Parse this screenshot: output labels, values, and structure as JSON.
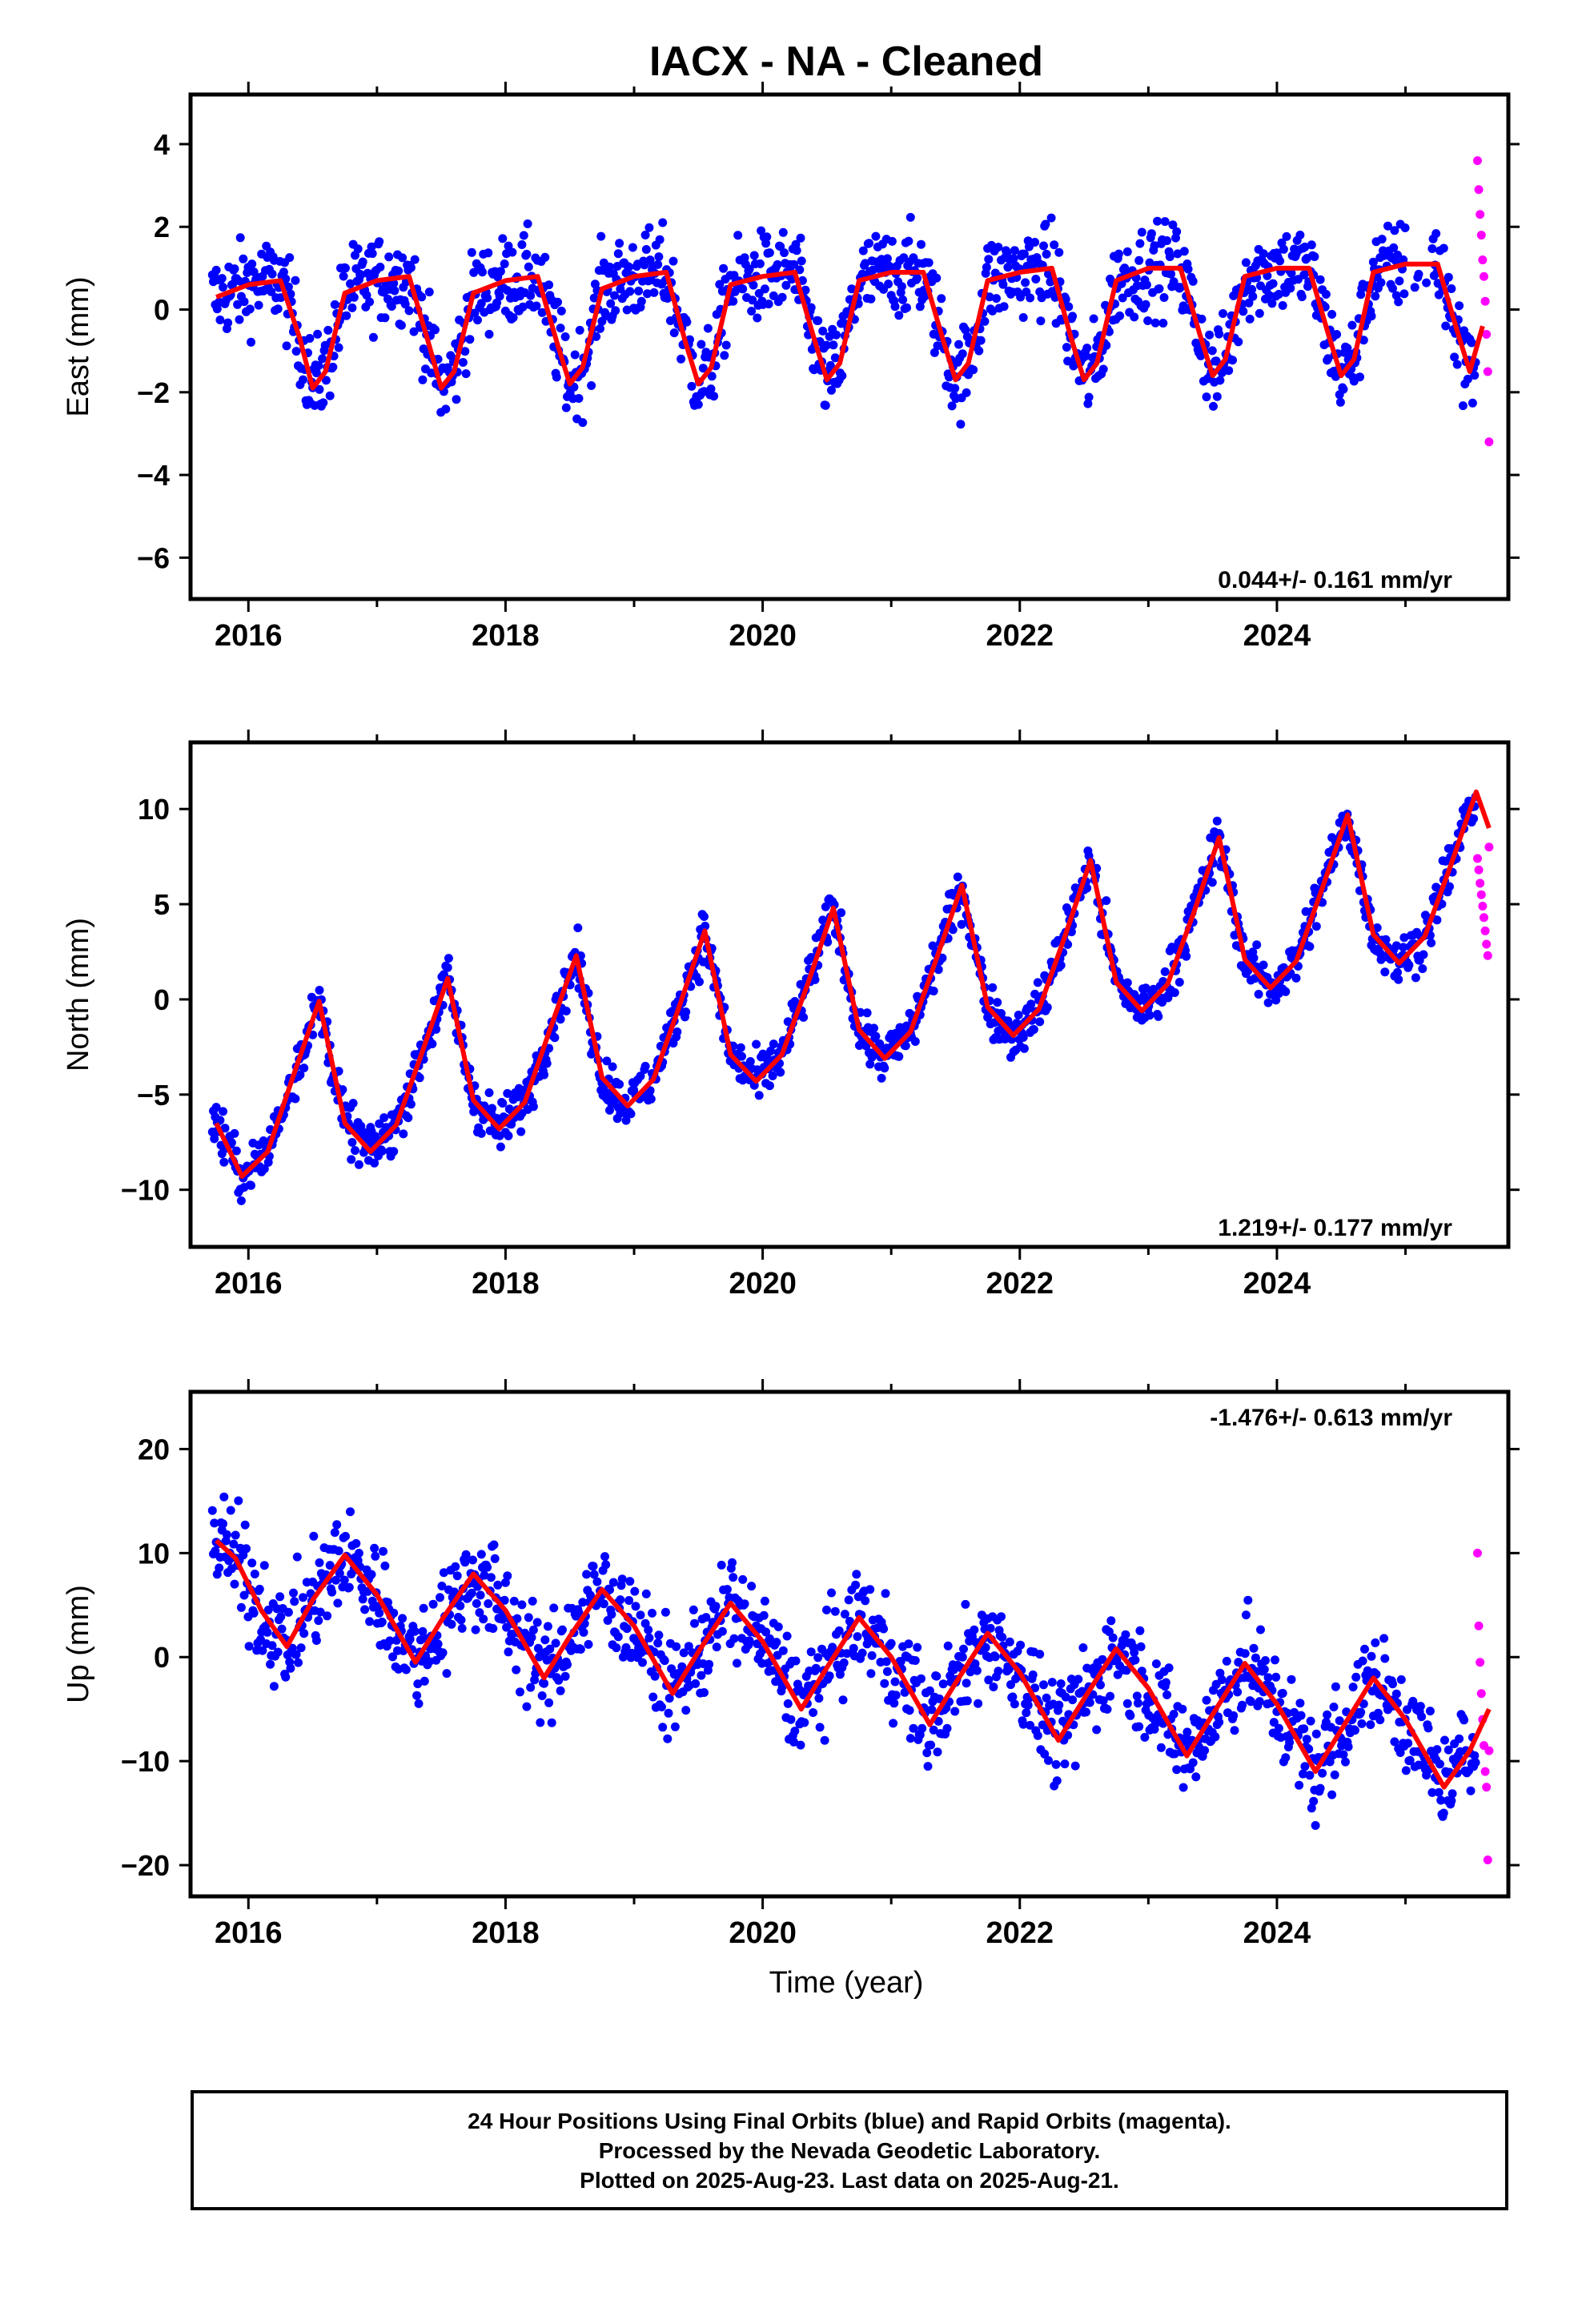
{
  "title": "IACX  - NA - Cleaned",
  "xlabel": "Time (year)",
  "colors": {
    "final": "#0000ff",
    "rapid": "#ff00ff",
    "model": "#ff0000",
    "frame": "#000000"
  },
  "footer": {
    "line1": "24 Hour Positions Using Final Orbits (blue) and Rapid Orbits (magenta).",
    "line2": "Processed by the Nevada Geodetic Laboratory.",
    "line3": "Plotted on 2025-Aug-23. Last data on 2025-Aug-21."
  },
  "chart_data": [
    {
      "type": "scatter",
      "component": "East",
      "ylabel": "East (mm)",
      "xlim": [
        2015.55,
        2025.8
      ],
      "ylim": [
        -7.0,
        5.2
      ],
      "xticks": [
        2016,
        2018,
        2020,
        2022,
        2024
      ],
      "yticks": [
        -6,
        -4,
        -2,
        0,
        2,
        4
      ],
      "rate_text": "0.044+/- 0.161 mm/yr",
      "rate_position": "bottom-right",
      "model": {
        "x": [
          2015.75,
          2016.0,
          2016.25,
          2016.4,
          2016.5,
          2016.6,
          2016.75,
          2017.0,
          2017.25,
          2017.4,
          2017.5,
          2017.6,
          2017.75,
          2018.0,
          2018.25,
          2018.4,
          2018.5,
          2018.6,
          2018.75,
          2019.0,
          2019.25,
          2019.4,
          2019.5,
          2019.6,
          2019.75,
          2020.0,
          2020.25,
          2020.4,
          2020.5,
          2020.6,
          2020.75,
          2021.0,
          2021.25,
          2021.4,
          2021.5,
          2021.6,
          2021.75,
          2022.0,
          2022.25,
          2022.4,
          2022.5,
          2022.6,
          2022.75,
          2023.0,
          2023.25,
          2023.4,
          2023.5,
          2023.6,
          2023.75,
          2024.0,
          2024.25,
          2024.4,
          2024.5,
          2024.6,
          2024.75,
          2025.0,
          2025.25,
          2025.4,
          2025.5,
          2025.6
        ],
        "y": [
          0.3,
          0.6,
          0.7,
          -0.7,
          -1.9,
          -1.5,
          0.4,
          0.7,
          0.8,
          -0.8,
          -1.9,
          -1.5,
          0.4,
          0.7,
          0.8,
          -0.8,
          -1.8,
          -1.4,
          0.5,
          0.8,
          0.9,
          -0.8,
          -1.8,
          -1.4,
          0.6,
          0.8,
          0.9,
          -0.7,
          -1.7,
          -1.3,
          0.7,
          0.9,
          0.9,
          -0.7,
          -1.7,
          -1.3,
          0.7,
          0.9,
          1.0,
          -0.7,
          -1.7,
          -1.3,
          0.7,
          1.0,
          1.0,
          -0.6,
          -1.6,
          -1.2,
          0.8,
          1.0,
          1.0,
          -0.6,
          -1.6,
          -1.2,
          0.9,
          1.1,
          1.1,
          -0.5,
          -1.5,
          -0.4
        ]
      },
      "rapid": {
        "x": [
          2025.56,
          2025.57,
          2025.58,
          2025.59,
          2025.6,
          2025.61,
          2025.62,
          2025.63,
          2025.64,
          2025.65
        ],
        "y": [
          3.6,
          2.9,
          2.3,
          1.8,
          1.2,
          0.8,
          0.2,
          -0.6,
          -1.5,
          -3.2
        ]
      }
    },
    {
      "type": "scatter",
      "component": "North",
      "ylabel": "North (mm)",
      "xlim": [
        2015.55,
        2025.8
      ],
      "ylim": [
        -13.0,
        13.5
      ],
      "xticks": [
        2016,
        2018,
        2020,
        2022,
        2024
      ],
      "yticks": [
        -10,
        -5,
        0,
        5,
        10
      ],
      "rate_text": "1.219+/- 0.177 mm/yr",
      "rate_position": "bottom-right",
      "model": {
        "x": [
          2015.75,
          2015.95,
          2016.15,
          2016.35,
          2016.55,
          2016.75,
          2016.95,
          2017.15,
          2017.35,
          2017.55,
          2017.75,
          2017.95,
          2018.15,
          2018.35,
          2018.55,
          2018.75,
          2018.95,
          2019.15,
          2019.35,
          2019.55,
          2019.75,
          2019.95,
          2020.15,
          2020.35,
          2020.55,
          2020.75,
          2020.95,
          2021.15,
          2021.35,
          2021.55,
          2021.75,
          2021.95,
          2022.15,
          2022.35,
          2022.55,
          2022.75,
          2022.95,
          2023.15,
          2023.35,
          2023.55,
          2023.75,
          2023.95,
          2024.15,
          2024.35,
          2024.55,
          2024.75,
          2024.95,
          2025.15,
          2025.35,
          2025.55,
          2025.65
        ],
        "y": [
          -6.5,
          -9.3,
          -8.0,
          -4.0,
          -0.1,
          -6.5,
          -8.0,
          -6.6,
          -2.8,
          1.1,
          -5.3,
          -6.8,
          -5.4,
          -1.5,
          2.3,
          -4.1,
          -5.6,
          -4.2,
          -0.4,
          3.6,
          -2.9,
          -4.3,
          -2.9,
          0.8,
          4.8,
          -1.6,
          -3.1,
          -1.7,
          2.1,
          6.0,
          -0.4,
          -1.9,
          -0.5,
          3.3,
          7.3,
          0.9,
          -0.6,
          0.8,
          4.5,
          8.5,
          2.1,
          0.6,
          2.0,
          5.8,
          9.7,
          3.4,
          1.9,
          3.3,
          7.0,
          10.9,
          9.0
        ]
      },
      "rapid": {
        "x": [
          2025.56,
          2025.57,
          2025.58,
          2025.59,
          2025.6,
          2025.61,
          2025.62,
          2025.63,
          2025.64,
          2025.65
        ],
        "y": [
          7.4,
          6.8,
          6.1,
          5.5,
          4.9,
          4.3,
          3.6,
          2.9,
          2.3,
          8.0
        ]
      }
    },
    {
      "type": "scatter",
      "component": "Up",
      "ylabel": "Up (mm)",
      "xlim": [
        2015.55,
        2025.8
      ],
      "ylim": [
        -23.0,
        25.5
      ],
      "xticks": [
        2016,
        2018,
        2020,
        2022,
        2024
      ],
      "yticks": [
        -20,
        -10,
        0,
        10,
        20
      ],
      "rate_text": "-1.476+/- 0.613 mm/yr",
      "rate_position": "top-right",
      "model": {
        "x": [
          2015.75,
          2015.9,
          2016.1,
          2016.3,
          2016.5,
          2016.75,
          2017.0,
          2017.3,
          2017.5,
          2017.75,
          2018.0,
          2018.3,
          2018.5,
          2018.75,
          2019.0,
          2019.3,
          2019.5,
          2019.75,
          2020.0,
          2020.3,
          2020.5,
          2020.75,
          2021.0,
          2021.3,
          2021.5,
          2021.75,
          2022.0,
          2022.3,
          2022.5,
          2022.75,
          2023.0,
          2023.3,
          2023.5,
          2023.75,
          2024.0,
          2024.3,
          2024.5,
          2024.75,
          2025.0,
          2025.3,
          2025.5,
          2025.65
        ],
        "y": [
          11.2,
          9.5,
          4.5,
          1.0,
          5.5,
          9.8,
          6.0,
          -0.5,
          3.5,
          8.0,
          4.5,
          -2.0,
          2.0,
          6.5,
          3.0,
          -3.5,
          0.5,
          5.2,
          1.5,
          -5.0,
          -1.0,
          3.8,
          0.0,
          -6.5,
          -2.5,
          2.3,
          -1.5,
          -8.0,
          -4.0,
          0.8,
          -3.0,
          -9.5,
          -5.5,
          -0.6,
          -4.5,
          -11.0,
          -7.0,
          -2.0,
          -6.0,
          -12.5,
          -9.0,
          -5.0
        ]
      },
      "rapid": {
        "x": [
          2025.56,
          2025.57,
          2025.58,
          2025.59,
          2025.6,
          2025.61,
          2025.62,
          2025.63,
          2025.64,
          2025.65
        ],
        "y": [
          10.0,
          3.0,
          -0.5,
          -3.5,
          -6.0,
          -8.5,
          -11.0,
          -12.5,
          -19.5,
          -9.0
        ]
      }
    }
  ]
}
